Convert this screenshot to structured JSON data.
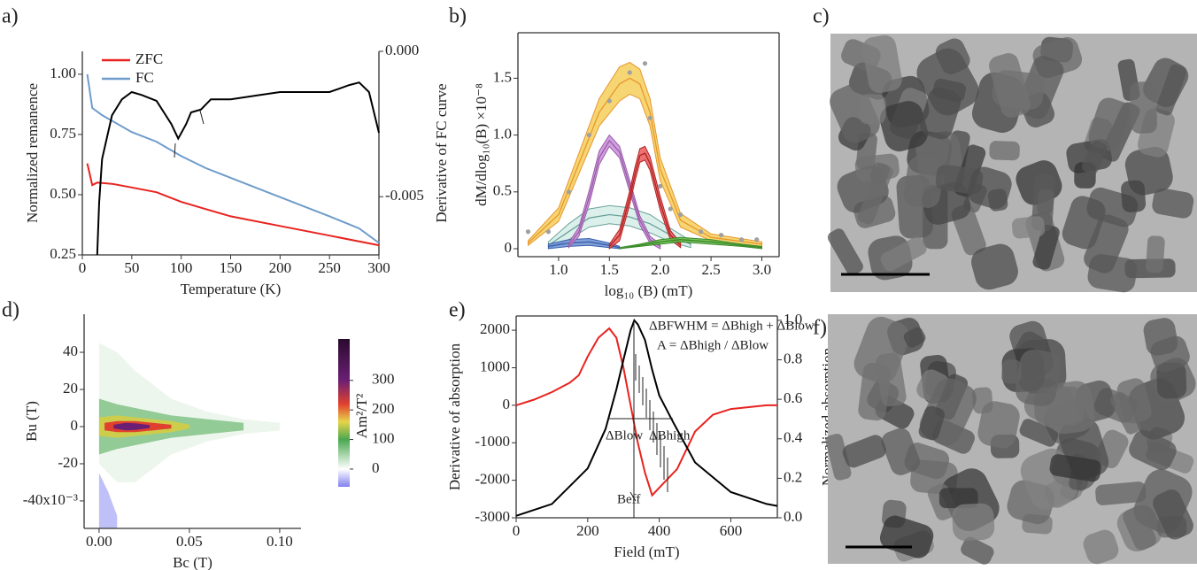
{
  "chart_data": [
    {
      "panel_label": "a)",
      "type": "line",
      "x_label": "Temperature (K)",
      "y_label": "Normalized remanence",
      "y2_label": "Derivative of FC curve",
      "xlim": [
        0,
        300
      ],
      "xticks": [
        0,
        50,
        100,
        150,
        200,
        250,
        300
      ],
      "ylim": [
        0.25,
        1.095
      ],
      "yticks": [
        0.25,
        {
          "value": 0.5,
          "label": "0.50"
        },
        0.75,
        {
          "value": 1,
          "label": "1.00"
        }
      ],
      "y2lim": [
        -0.007,
        0
      ],
      "y2ticks": [
        {
          "value": 0,
          "label": "0.000"
        },
        {
          "value": -0.005,
          "label": "-0.005"
        }
      ],
      "legend": "upper left",
      "series": [
        {
          "name": "ZFC",
          "color": "#e8231f",
          "x": [
            5,
            10,
            15,
            30,
            50,
            75,
            100,
            125,
            150,
            200,
            250,
            300
          ],
          "values": [
            0.63,
            0.54,
            0.55,
            0.545,
            0.53,
            0.51,
            0.47,
            0.44,
            0.41,
            0.37,
            0.33,
            0.29
          ]
        },
        {
          "name": "FC",
          "color": "#6f9ccb",
          "x": [
            5,
            10,
            20,
            50,
            75,
            100,
            125,
            150,
            200,
            250,
            280,
            300
          ],
          "values": [
            1.0,
            0.86,
            0.83,
            0.76,
            0.72,
            0.66,
            0.61,
            0.57,
            0.49,
            0.41,
            0.36,
            0.3
          ]
        },
        {
          "color": "#000000",
          "axis": "y2",
          "x": [
            15,
            17,
            20,
            30,
            40,
            50,
            60,
            75,
            90,
            97,
            105,
            110,
            120,
            130,
            150,
            180,
            200,
            250,
            270,
            280,
            290,
            300
          ],
          "values": [
            -0.007,
            -0.0052,
            -0.0037,
            -0.0022,
            -0.00165,
            -0.0014,
            -0.0015,
            -0.0017,
            -0.0025,
            -0.003,
            -0.0025,
            -0.0021,
            -0.002,
            -0.00165,
            -0.00165,
            -0.0015,
            -0.0014,
            -0.0014,
            -0.00116,
            -0.00107,
            -0.0014,
            -0.0028
          ]
        }
      ]
    },
    {
      "panel_label": "b)",
      "type": "band",
      "x_label": "log₁₀ (B) (mT)",
      "y_label": "dM/dlog₁₀(B) ×10⁻⁸",
      "xlim": [
        0.6,
        3.17
      ],
      "xticks": [
        {
          "value": 1,
          "label": "1.0"
        },
        1.5,
        {
          "value": 2,
          "label": "2.0"
        },
        2.5,
        {
          "value": 3,
          "label": "3.0"
        }
      ],
      "ylim": [
        -0.07,
        1.9
      ],
      "yticks": [
        0,
        0.5,
        {
          "value": 1,
          "label": "1.0"
        },
        1.5
      ],
      "series": [
        {
          "color": "#e8962e",
          "fill": "#f5cf5a",
          "x": [
            0.7,
            1.0,
            1.2,
            1.4,
            1.6,
            1.7,
            1.8,
            1.9,
            2.0,
            2.2,
            2.5,
            3.0
          ],
          "values": [
            0.05,
            0.3,
            0.75,
            1.2,
            1.45,
            1.5,
            1.45,
            1.2,
            0.7,
            0.25,
            0.1,
            0.04
          ],
          "lower": [
            0.03,
            0.24,
            0.66,
            1.08,
            1.3,
            1.36,
            1.32,
            1.08,
            0.6,
            0.19,
            0.07,
            0.02
          ],
          "upper": [
            0.07,
            0.36,
            0.84,
            1.32,
            1.6,
            1.64,
            1.58,
            1.32,
            0.8,
            0.31,
            0.13,
            0.06
          ]
        },
        {
          "color": "#6aa39a",
          "fill": "#d5ece8",
          "x": [
            0.9,
            1.1,
            1.3,
            1.5,
            1.7,
            1.9,
            2.1,
            2.3
          ],
          "values": [
            0.03,
            0.15,
            0.27,
            0.3,
            0.28,
            0.22,
            0.12,
            0.04
          ],
          "lower": [
            0.0,
            0.08,
            0.19,
            0.22,
            0.2,
            0.14,
            0.06,
            0.01
          ],
          "upper": [
            0.06,
            0.22,
            0.35,
            0.38,
            0.36,
            0.3,
            0.18,
            0.07
          ]
        },
        {
          "color": "#3a5fb0",
          "fill": "#6a8fd0",
          "x": [
            0.9,
            1.1,
            1.3,
            1.5,
            1.6
          ],
          "values": [
            0.02,
            0.05,
            0.06,
            0.03,
            0.01
          ],
          "lower": [
            0.0,
            0.02,
            0.03,
            0.01,
            0.0
          ],
          "upper": [
            0.04,
            0.08,
            0.09,
            0.05,
            0.02
          ]
        },
        {
          "color": "#9a5aa6",
          "fill": "#c98fdc",
          "x": [
            1.1,
            1.2,
            1.3,
            1.4,
            1.5,
            1.6,
            1.7,
            1.8,
            1.9,
            2.0
          ],
          "values": [
            0.03,
            0.15,
            0.45,
            0.8,
            0.95,
            0.85,
            0.55,
            0.25,
            0.08,
            0.02
          ],
          "lower": [
            0.01,
            0.11,
            0.39,
            0.74,
            0.9,
            0.8,
            0.5,
            0.21,
            0.05,
            0.0
          ],
          "upper": [
            0.05,
            0.19,
            0.51,
            0.86,
            1.0,
            0.9,
            0.6,
            0.29,
            0.11,
            0.04
          ]
        },
        {
          "color": "#b02020",
          "fill": "#ea5a5a",
          "x": [
            1.5,
            1.6,
            1.7,
            1.75,
            1.8,
            1.85,
            1.9,
            2.0,
            2.1,
            2.2
          ],
          "values": [
            0.02,
            0.12,
            0.45,
            0.65,
            0.82,
            0.84,
            0.75,
            0.4,
            0.12,
            0.03
          ],
          "lower": [
            0.0,
            0.07,
            0.39,
            0.59,
            0.76,
            0.78,
            0.69,
            0.34,
            0.08,
            0.01
          ],
          "upper": [
            0.04,
            0.17,
            0.51,
            0.71,
            0.88,
            0.9,
            0.81,
            0.46,
            0.16,
            0.05
          ]
        },
        {
          "color": "#3a8a2a",
          "fill": "#66bb44",
          "x": [
            1.6,
            1.8,
            2.0,
            2.2,
            2.5,
            2.8,
            3.0
          ],
          "values": [
            0.0,
            0.03,
            0.06,
            0.08,
            0.06,
            0.03,
            0.01
          ],
          "lower": [
            0.0,
            0.02,
            0.04,
            0.06,
            0.04,
            0.02,
            0.0
          ],
          "upper": [
            0.01,
            0.04,
            0.08,
            0.1,
            0.08,
            0.04,
            0.02
          ]
        }
      ],
      "points": {
        "color": "#a0a0a0",
        "x": [
          0.7,
          0.9,
          1.1,
          1.3,
          1.5,
          1.7,
          1.85,
          1.9,
          2.0,
          2.1,
          2.2,
          2.4,
          2.6,
          2.8,
          2.95
        ],
        "values": [
          0.15,
          0.15,
          0.5,
          1.0,
          1.3,
          1.55,
          1.63,
          1.15,
          0.55,
          0.35,
          0.3,
          0.15,
          0.12,
          0.08,
          0.08
        ]
      }
    },
    {
      "panel_label": "c)",
      "type": "image"
    },
    {
      "panel_label": "d)",
      "type": "contour",
      "x_label": "Bc (T)",
      "y_label": "Bu (T)",
      "colorbar_label": "Am²/T²",
      "xlim": [
        -0.0083,
        0.1118
      ],
      "xticks": [
        {
          "value": 0,
          "label": "0.00"
        },
        0.05,
        {
          "value": 0.1,
          "label": "0.10"
        }
      ],
      "ylim": [
        -0.0548,
        0.0605
      ],
      "yticks": [
        {
          "value": 0.04,
          "label": "40"
        },
        {
          "value": 0.02,
          "label": "20"
        },
        0,
        {
          "value": -0.02,
          "label": "-20"
        },
        {
          "value": -0.04,
          "label": "-40x10⁻³"
        }
      ],
      "colorbar": {
        "clim": [
          -60,
          440
        ],
        "ticks": [
          0,
          100,
          200,
          300
        ],
        "stops": [
          {
            "value": -60,
            "color": "#8080f0"
          },
          {
            "value": 0,
            "color": "#ffffff"
          },
          {
            "value": 100,
            "color": "#49a84f"
          },
          {
            "value": 160,
            "color": "#e8d44a"
          },
          {
            "value": 220,
            "color": "#e0412e"
          },
          {
            "value": 300,
            "color": "#6b1f74"
          },
          {
            "value": 440,
            "color": "#2a0a2e"
          }
        ]
      },
      "levels": [
        {
          "value": -30,
          "bc": [
            0,
            0.005,
            0.01
          ],
          "upper": [
            -0.025,
            -0.035,
            -0.048
          ],
          "lower": [
            -0.0548,
            -0.0548,
            -0.0548
          ]
        },
        {
          "value": 10,
          "bc": [
            0,
            0.01,
            0.02,
            0.04,
            0.06,
            0.08,
            0.1
          ],
          "upper": [
            0.045,
            0.04,
            0.03,
            0.015,
            0.008,
            0.004,
            0.002
          ],
          "lower": [
            -0.02,
            -0.03,
            -0.03,
            -0.015,
            -0.008,
            -0.004,
            -0.002
          ]
        },
        {
          "value": 60,
          "bc": [
            0,
            0.01,
            0.02,
            0.04,
            0.06,
            0.08
          ],
          "upper": [
            0.015,
            0.012,
            0.01,
            0.006,
            0.004,
            0.002
          ],
          "lower": [
            -0.015,
            -0.012,
            -0.01,
            -0.006,
            -0.004,
            -0.002
          ]
        },
        {
          "value": 150,
          "bc": [
            0,
            0.01,
            0.02,
            0.04,
            0.05
          ],
          "upper": [
            0.005,
            0.006,
            0.005,
            0.003,
            0.001
          ],
          "lower": [
            -0.005,
            -0.006,
            -0.005,
            -0.003,
            -0.001
          ]
        },
        {
          "value": 220,
          "bc": [
            0.003,
            0.01,
            0.02,
            0.03,
            0.04
          ],
          "upper": [
            0.002,
            0.003,
            0.003,
            0.002,
            0.001
          ],
          "lower": [
            -0.002,
            -0.003,
            -0.003,
            -0.002,
            -0.001
          ]
        },
        {
          "value": 300,
          "bc": [
            0.008,
            0.015,
            0.02,
            0.028
          ],
          "upper": [
            0.001,
            0.002,
            0.0018,
            0.0008
          ],
          "lower": [
            -0.001,
            -0.002,
            -0.0018,
            -0.0008
          ]
        }
      ]
    },
    {
      "panel_label": "e)",
      "type": "line",
      "x_label": "Field (mT)",
      "y_label": "Derivative of absorption",
      "y2_label": "Normalized absorption",
      "xlim": [
        0,
        730
      ],
      "xticks": [
        0,
        200,
        400,
        600
      ],
      "ylim": [
        -3000,
        2380
      ],
      "yticks": [
        2000,
        1000,
        0,
        -1000,
        -2000,
        -3000
      ],
      "y2lim": [
        0,
        1.022
      ],
      "y2ticks": [
        {
          "value": 0,
          "label": "0.0"
        },
        0.2,
        0.4,
        0.6,
        0.8,
        {
          "value": 1,
          "label": "1.0"
        }
      ],
      "series": [
        {
          "color": "#e8231f",
          "x": [
            0,
            50,
            100,
            150,
            175,
            200,
            230,
            260,
            280,
            300,
            320,
            340,
            360,
            380,
            400,
            450,
            500,
            550,
            600,
            650,
            700,
            730
          ],
          "values": [
            0,
            150,
            350,
            600,
            800,
            1300,
            1800,
            2050,
            1800,
            1000,
            0,
            -1000,
            -1800,
            -2400,
            -2200,
            -1700,
            -700,
            -250,
            -100,
            -50,
            0,
            0
          ]
        },
        {
          "color": "#000000",
          "axis": "y2",
          "x": [
            0,
            100,
            200,
            250,
            280,
            300,
            320,
            330,
            340,
            360,
            380,
            400,
            420,
            440,
            500,
            600,
            700,
            730
          ],
          "values": [
            0.01,
            0.07,
            0.25,
            0.45,
            0.65,
            0.8,
            0.95,
            1.0,
            0.98,
            0.9,
            0.75,
            0.62,
            0.55,
            0.48,
            0.28,
            0.13,
            0.07,
            0.06
          ]
        }
      ],
      "annotations": [
        "ΔBFWHM = ΔBhigh + ΔBlow",
        "A = ΔBhigh / ΔBlow",
        "ΔBlow",
        "ΔBhigh",
        "Beff"
      ]
    },
    {
      "panel_label": "f)",
      "type": "image"
    }
  ]
}
